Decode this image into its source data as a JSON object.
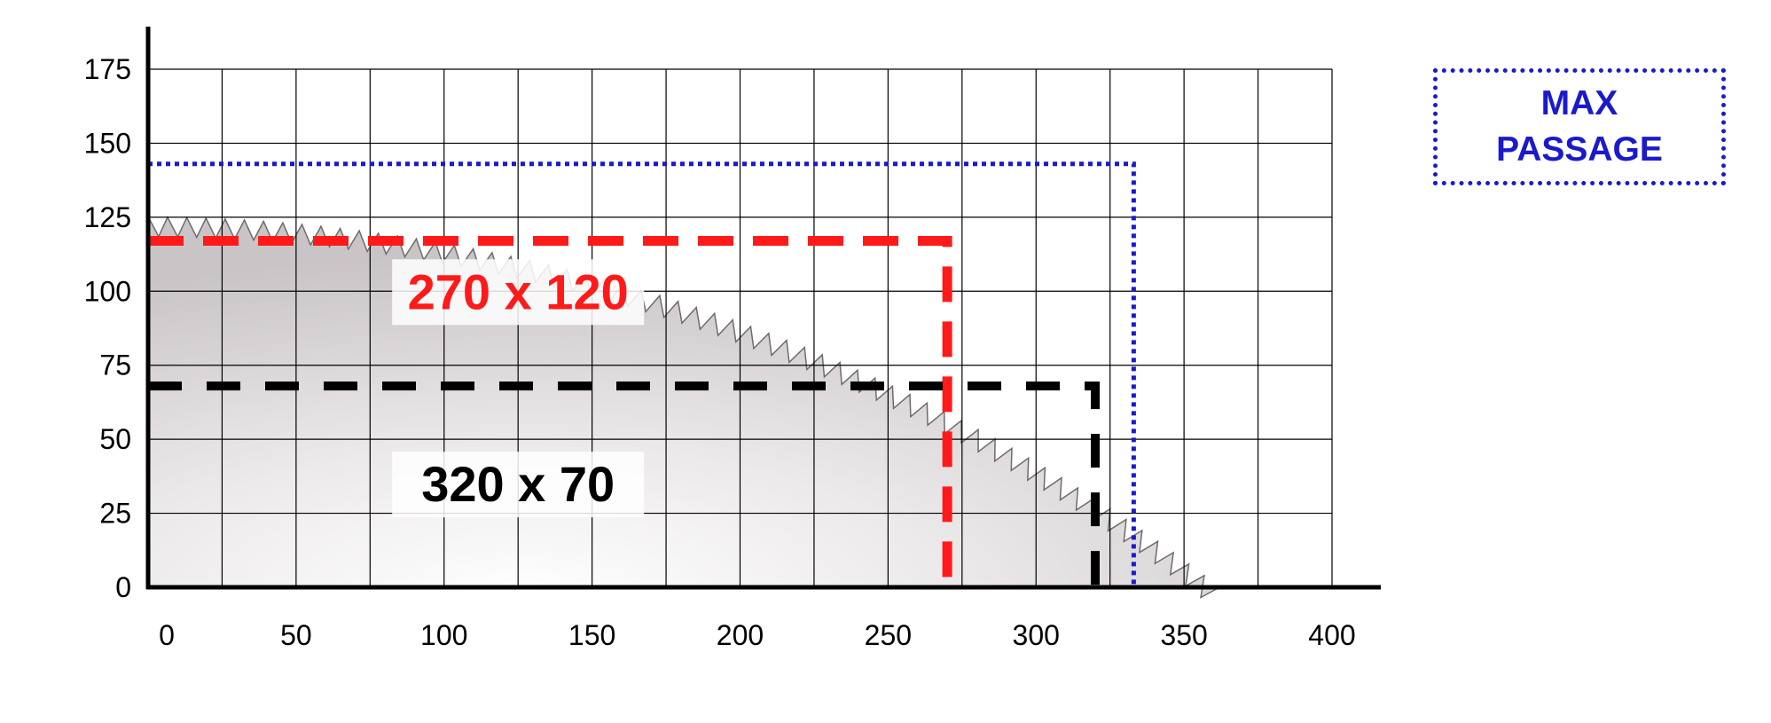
{
  "chart_data": {
    "type": "line",
    "title": "",
    "xlabel": "",
    "ylabel": "",
    "xlim": [
      0,
      400
    ],
    "ylim": [
      0,
      175
    ],
    "x_ticks": [
      "0",
      "50",
      "100",
      "150",
      "200",
      "250",
      "300",
      "350",
      "400"
    ],
    "y_ticks": [
      "0",
      "25",
      "50",
      "75",
      "100",
      "125",
      "150",
      "175"
    ],
    "grid": true,
    "regions": [
      {
        "label": "270 x 120",
        "width": 270,
        "height": 117,
        "color": "#ff1a1a",
        "style": "dashed"
      },
      {
        "label": "320 x 70",
        "width": 320,
        "height": 68,
        "color": "#000000",
        "style": "dashed"
      },
      {
        "label": "MAX PASSAGE",
        "width": 333,
        "height": 143,
        "color": "#1a1acc",
        "style": "dotted"
      }
    ],
    "legend": {
      "line1": "MAX",
      "line2": "PASSAGE",
      "position": "top-right"
    }
  }
}
